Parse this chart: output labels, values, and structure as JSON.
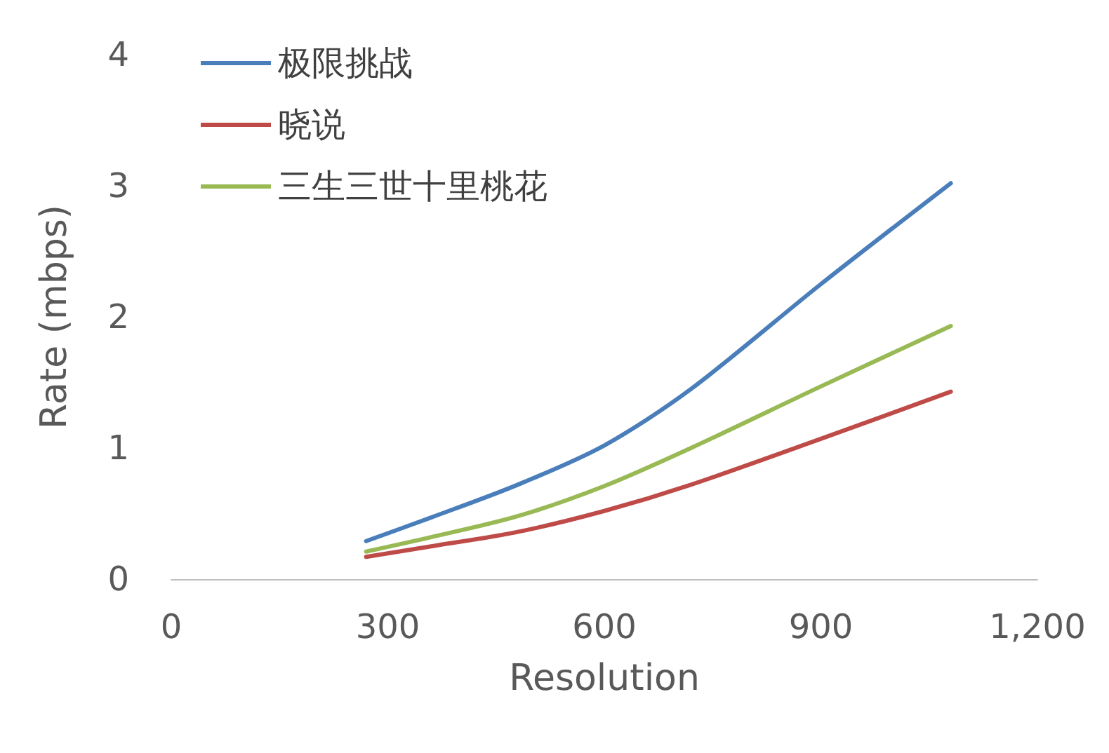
{
  "chart_data": {
    "type": "line",
    "xlabel": "Resolution",
    "ylabel": "Rate (mbps)",
    "x": [
      270,
      360,
      480,
      600,
      720,
      900,
      1080
    ],
    "series": [
      {
        "name": "极限挑战",
        "color": "#4a7ebb",
        "values": [
          0.29,
          0.47,
          0.72,
          1.02,
          1.45,
          2.25,
          3.02
        ]
      },
      {
        "name": "晓说",
        "color": "#be4b48",
        "values": [
          0.17,
          0.25,
          0.36,
          0.52,
          0.72,
          1.07,
          1.43
        ]
      },
      {
        "name": "三生三世十里桃花",
        "color": "#98b954",
        "values": [
          0.21,
          0.32,
          0.48,
          0.71,
          1.0,
          1.47,
          1.93
        ]
      }
    ],
    "xlim": [
      0,
      1200
    ],
    "xticks": [
      0,
      300,
      600,
      900,
      {
        "value": 1200,
        "label": "1,200"
      }
    ],
    "ylim": [
      0,
      4
    ],
    "yticks": [
      0,
      1,
      2,
      3,
      4
    ],
    "grid": false,
    "legend": "top left",
    "marker": "none",
    "line_style": "solid"
  }
}
